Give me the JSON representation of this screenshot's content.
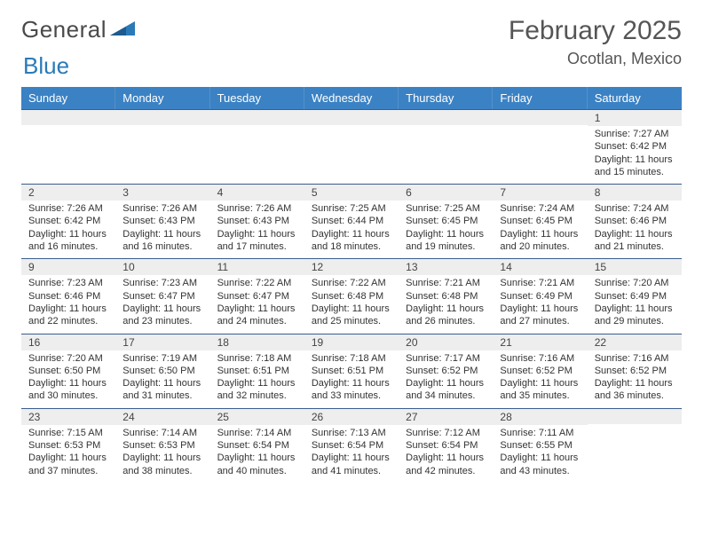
{
  "colors": {
    "header_bg": "#3b82c4",
    "header_text": "#ffffff",
    "day_band_bg": "#eeeeee",
    "day_band_border": "#3b5c8c",
    "body_text": "#333333",
    "title_text": "#555555",
    "logo_gray": "#4a4a4a",
    "logo_blue": "#2a7ab8"
  },
  "logo": {
    "word1": "General",
    "word2": "Blue"
  },
  "title": "February 2025",
  "location": "Ocotlan, Mexico",
  "weekdays": [
    "Sunday",
    "Monday",
    "Tuesday",
    "Wednesday",
    "Thursday",
    "Friday",
    "Saturday"
  ],
  "layout": {
    "columns": 7,
    "rows": 5,
    "first_weekday_index": 6,
    "days_in_month": 28
  },
  "days": [
    {
      "n": 1,
      "sunrise": "7:27 AM",
      "sunset": "6:42 PM",
      "daylight": "11 hours and 15 minutes."
    },
    {
      "n": 2,
      "sunrise": "7:26 AM",
      "sunset": "6:42 PM",
      "daylight": "11 hours and 16 minutes."
    },
    {
      "n": 3,
      "sunrise": "7:26 AM",
      "sunset": "6:43 PM",
      "daylight": "11 hours and 16 minutes."
    },
    {
      "n": 4,
      "sunrise": "7:26 AM",
      "sunset": "6:43 PM",
      "daylight": "11 hours and 17 minutes."
    },
    {
      "n": 5,
      "sunrise": "7:25 AM",
      "sunset": "6:44 PM",
      "daylight": "11 hours and 18 minutes."
    },
    {
      "n": 6,
      "sunrise": "7:25 AM",
      "sunset": "6:45 PM",
      "daylight": "11 hours and 19 minutes."
    },
    {
      "n": 7,
      "sunrise": "7:24 AM",
      "sunset": "6:45 PM",
      "daylight": "11 hours and 20 minutes."
    },
    {
      "n": 8,
      "sunrise": "7:24 AM",
      "sunset": "6:46 PM",
      "daylight": "11 hours and 21 minutes."
    },
    {
      "n": 9,
      "sunrise": "7:23 AM",
      "sunset": "6:46 PM",
      "daylight": "11 hours and 22 minutes."
    },
    {
      "n": 10,
      "sunrise": "7:23 AM",
      "sunset": "6:47 PM",
      "daylight": "11 hours and 23 minutes."
    },
    {
      "n": 11,
      "sunrise": "7:22 AM",
      "sunset": "6:47 PM",
      "daylight": "11 hours and 24 minutes."
    },
    {
      "n": 12,
      "sunrise": "7:22 AM",
      "sunset": "6:48 PM",
      "daylight": "11 hours and 25 minutes."
    },
    {
      "n": 13,
      "sunrise": "7:21 AM",
      "sunset": "6:48 PM",
      "daylight": "11 hours and 26 minutes."
    },
    {
      "n": 14,
      "sunrise": "7:21 AM",
      "sunset": "6:49 PM",
      "daylight": "11 hours and 27 minutes."
    },
    {
      "n": 15,
      "sunrise": "7:20 AM",
      "sunset": "6:49 PM",
      "daylight": "11 hours and 29 minutes."
    },
    {
      "n": 16,
      "sunrise": "7:20 AM",
      "sunset": "6:50 PM",
      "daylight": "11 hours and 30 minutes."
    },
    {
      "n": 17,
      "sunrise": "7:19 AM",
      "sunset": "6:50 PM",
      "daylight": "11 hours and 31 minutes."
    },
    {
      "n": 18,
      "sunrise": "7:18 AM",
      "sunset": "6:51 PM",
      "daylight": "11 hours and 32 minutes."
    },
    {
      "n": 19,
      "sunrise": "7:18 AM",
      "sunset": "6:51 PM",
      "daylight": "11 hours and 33 minutes."
    },
    {
      "n": 20,
      "sunrise": "7:17 AM",
      "sunset": "6:52 PM",
      "daylight": "11 hours and 34 minutes."
    },
    {
      "n": 21,
      "sunrise": "7:16 AM",
      "sunset": "6:52 PM",
      "daylight": "11 hours and 35 minutes."
    },
    {
      "n": 22,
      "sunrise": "7:16 AM",
      "sunset": "6:52 PM",
      "daylight": "11 hours and 36 minutes."
    },
    {
      "n": 23,
      "sunrise": "7:15 AM",
      "sunset": "6:53 PM",
      "daylight": "11 hours and 37 minutes."
    },
    {
      "n": 24,
      "sunrise": "7:14 AM",
      "sunset": "6:53 PM",
      "daylight": "11 hours and 38 minutes."
    },
    {
      "n": 25,
      "sunrise": "7:14 AM",
      "sunset": "6:54 PM",
      "daylight": "11 hours and 40 minutes."
    },
    {
      "n": 26,
      "sunrise": "7:13 AM",
      "sunset": "6:54 PM",
      "daylight": "11 hours and 41 minutes."
    },
    {
      "n": 27,
      "sunrise": "7:12 AM",
      "sunset": "6:54 PM",
      "daylight": "11 hours and 42 minutes."
    },
    {
      "n": 28,
      "sunrise": "7:11 AM",
      "sunset": "6:55 PM",
      "daylight": "11 hours and 43 minutes."
    }
  ],
  "labels": {
    "sunrise": "Sunrise:",
    "sunset": "Sunset:",
    "daylight": "Daylight:"
  }
}
